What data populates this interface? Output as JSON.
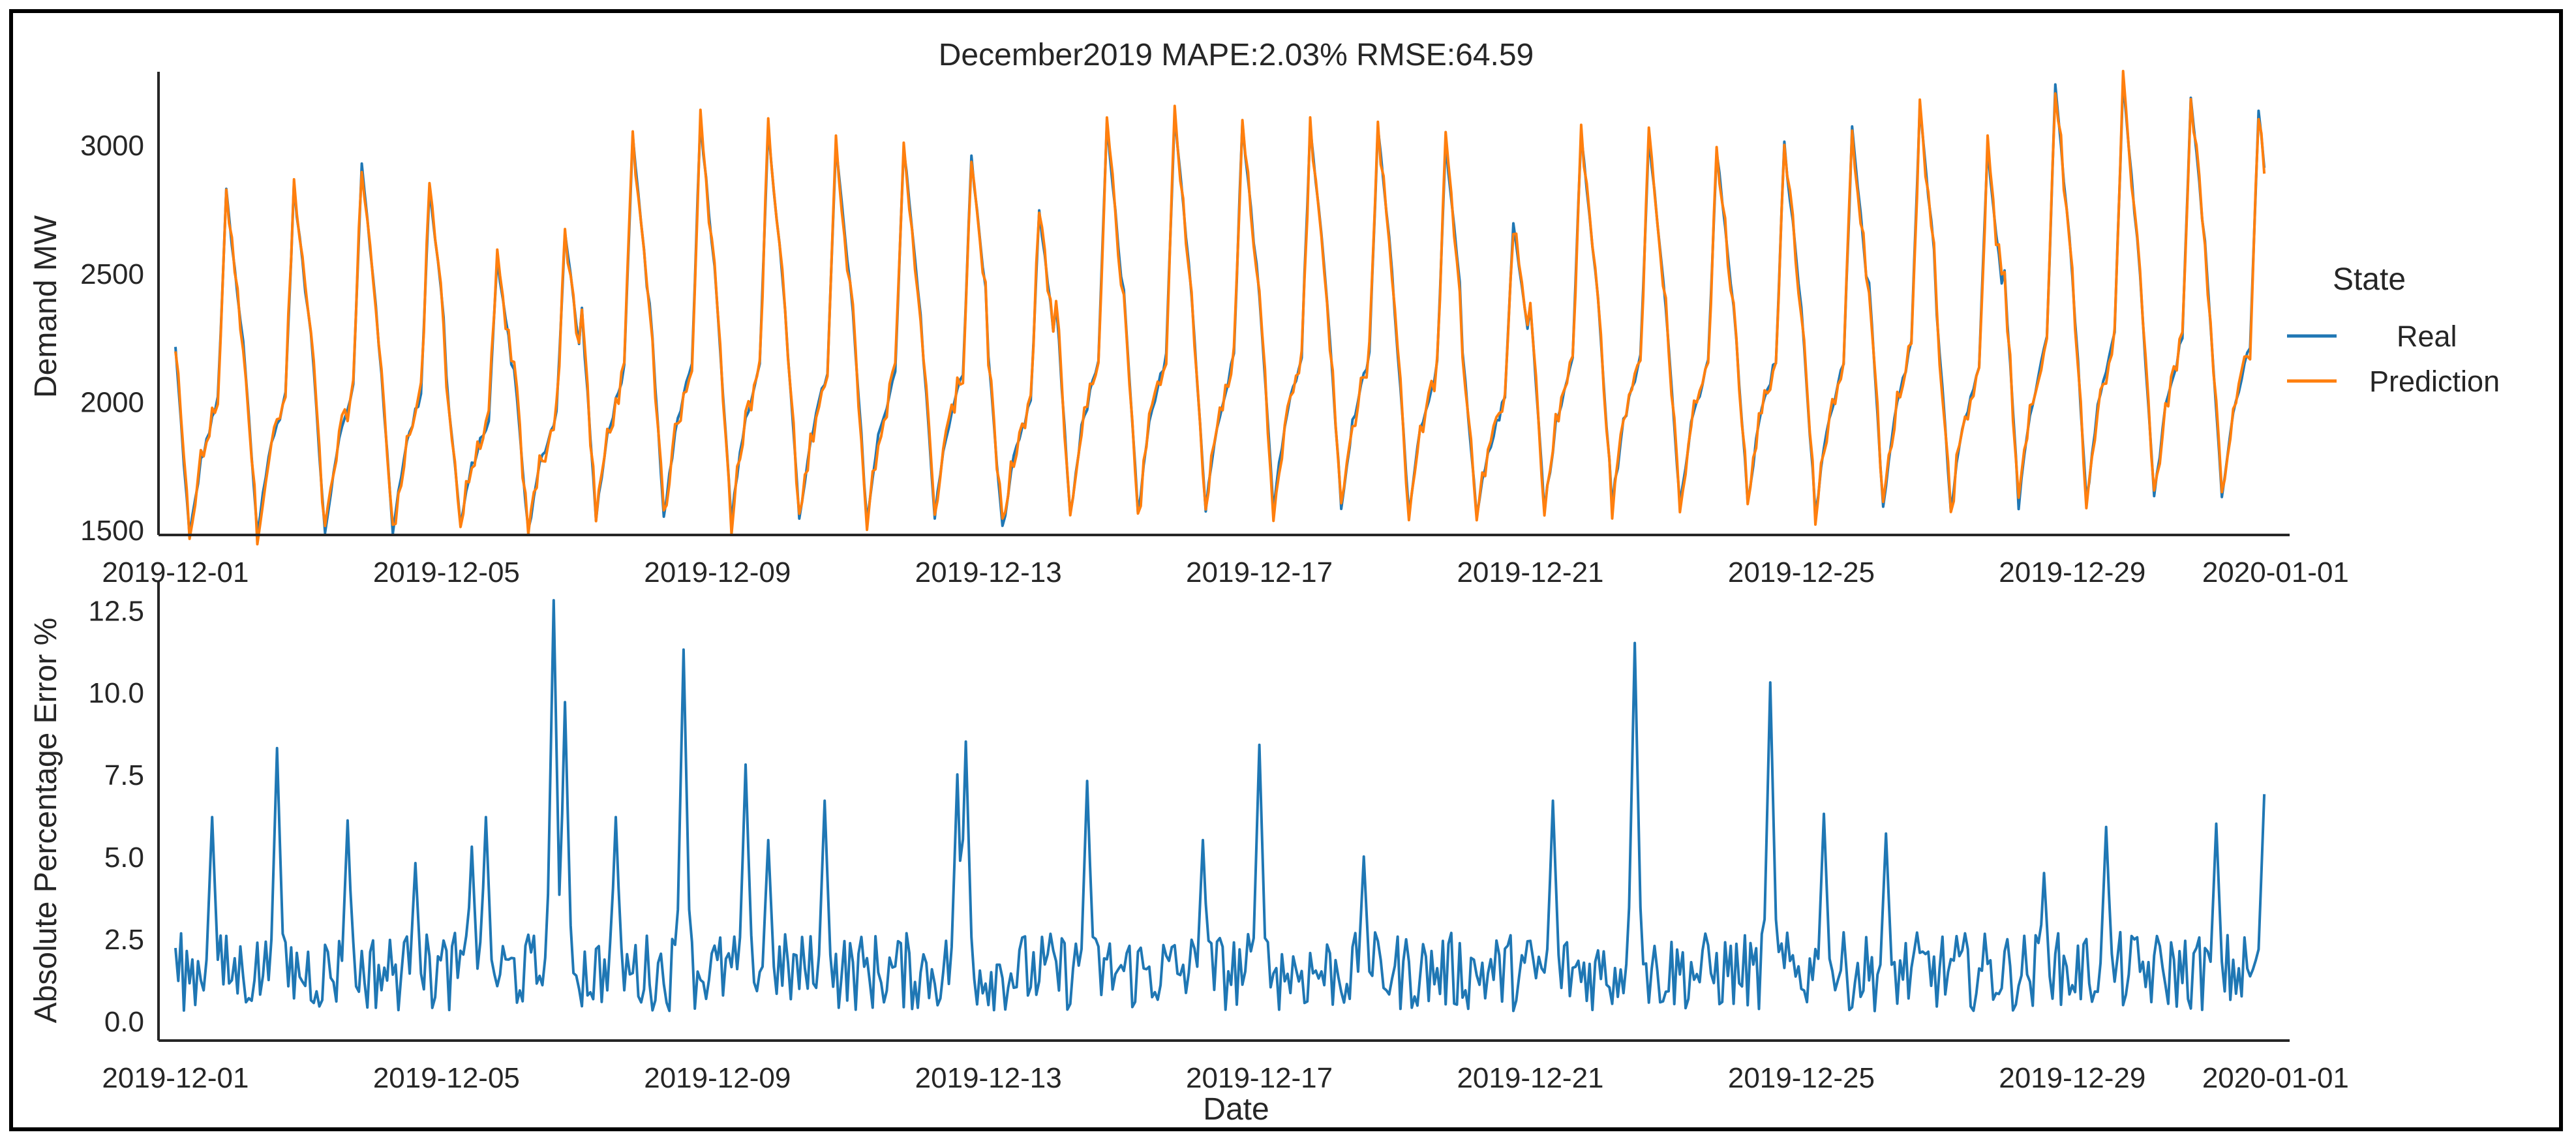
{
  "figure": {
    "title": "December2019  MAPE:2.03%  RMSE:64.59"
  },
  "chart_data": [
    {
      "type": "line",
      "title": "December2019  MAPE:2.03%  RMSE:64.59",
      "xlabel": "",
      "ylabel": "Demand MW",
      "ylim": [
        1480,
        3260
      ],
      "xlim": [
        "2019-11-30T18:00",
        "2020-01-01T05:00"
      ],
      "x_ticks": [
        "2019-12-01",
        "2019-12-05",
        "2019-12-09",
        "2019-12-13",
        "2019-12-17",
        "2019-12-21",
        "2019-12-25",
        "2019-12-29",
        "2020-01-01"
      ],
      "y_ticks": [
        "1500",
        "2000",
        "2500",
        "3000"
      ],
      "legend": {
        "title": "State",
        "placement": "right",
        "entries": [
          "Real",
          "Prediction"
        ]
      },
      "grid": false,
      "x_start": "2019-12-01T00:00",
      "x_step_hours": 1,
      "daily_peak_demand": [
        2810,
        2840,
        2920,
        2840,
        2550,
        2660,
        3020,
        3100,
        3060,
        2990,
        2990,
        2950,
        2740,
        3070,
        3130,
        3090,
        3080,
        3070,
        2990,
        2710,
        3050,
        3040,
        2980,
        3000,
        3060,
        3170,
        2980,
        3240,
        3240,
        3200,
        3140
      ],
      "daily_min_demand": [
        1470,
        1490,
        1490,
        1500,
        1520,
        1490,
        1540,
        1540,
        1540,
        1540,
        1540,
        1560,
        1500,
        1560,
        1560,
        1580,
        1590,
        1590,
        1580,
        1550,
        1580,
        1600,
        1600,
        1610,
        1560,
        1590,
        1590,
        1590,
        1610,
        1620,
        1620
      ],
      "series": [
        {
          "name": "Real",
          "color": "#1f77b4"
        },
        {
          "name": "Prediction",
          "color": "#ff7f0e"
        }
      ]
    },
    {
      "type": "line",
      "title": "",
      "xlabel": "Date",
      "ylabel": "Absolute Percentage Error %",
      "ylim": [
        -0.6,
        13.2
      ],
      "xlim": [
        "2019-11-30T18:00",
        "2020-01-01T05:00"
      ],
      "x_ticks": [
        "2019-12-01",
        "2019-12-05",
        "2019-12-09",
        "2019-12-13",
        "2019-12-17",
        "2019-12-21",
        "2019-12-25",
        "2019-12-29",
        "2020-01-01"
      ],
      "y_ticks": [
        "0.0",
        "2.5",
        "5.0",
        "7.5",
        "10.0",
        "12.5"
      ],
      "grid": false,
      "x_start": "2019-12-01T00:00",
      "x_step_hours": 1,
      "spikes": [
        {
          "x": "2019-12-01T13:00",
          "y": 6.2
        },
        {
          "x": "2019-12-02T12:00",
          "y": 8.3
        },
        {
          "x": "2019-12-03T13:00",
          "y": 6.1
        },
        {
          "x": "2019-12-04T13:00",
          "y": 4.8
        },
        {
          "x": "2019-12-05T09:00",
          "y": 5.3
        },
        {
          "x": "2019-12-05T14:00",
          "y": 6.2
        },
        {
          "x": "2019-12-06T14:00",
          "y": 12.8
        },
        {
          "x": "2019-12-06T18:00",
          "y": 9.7
        },
        {
          "x": "2019-12-07T12:00",
          "y": 6.2
        },
        {
          "x": "2019-12-08T12:00",
          "y": 11.3
        },
        {
          "x": "2019-12-09T10:00",
          "y": 7.8
        },
        {
          "x": "2019-12-09T18:00",
          "y": 5.5
        },
        {
          "x": "2019-12-10T14:00",
          "y": 6.7
        },
        {
          "x": "2019-12-12T13:00",
          "y": 7.5
        },
        {
          "x": "2019-12-12T16:00",
          "y": 8.5
        },
        {
          "x": "2019-12-14T11:00",
          "y": 7.3
        },
        {
          "x": "2019-12-16T04:00",
          "y": 5.5
        },
        {
          "x": "2019-12-17T00:00",
          "y": 8.4
        },
        {
          "x": "2019-12-18T13:00",
          "y": 5.0
        },
        {
          "x": "2019-12-21T08:00",
          "y": 6.7
        },
        {
          "x": "2019-12-22T13:00",
          "y": 11.5
        },
        {
          "x": "2019-12-24T13:00",
          "y": 10.3
        },
        {
          "x": "2019-12-25T08:00",
          "y": 6.3
        },
        {
          "x": "2019-12-26T06:00",
          "y": 5.7
        },
        {
          "x": "2019-12-28T14:00",
          "y": 4.5
        },
        {
          "x": "2019-12-29T12:00",
          "y": 5.9
        },
        {
          "x": "2019-12-31T03:00",
          "y": 6.0
        },
        {
          "x": "2019-12-31T20:00",
          "y": 6.9
        }
      ],
      "series": [
        {
          "name": "",
          "color": "#1f77b4"
        }
      ]
    }
  ]
}
